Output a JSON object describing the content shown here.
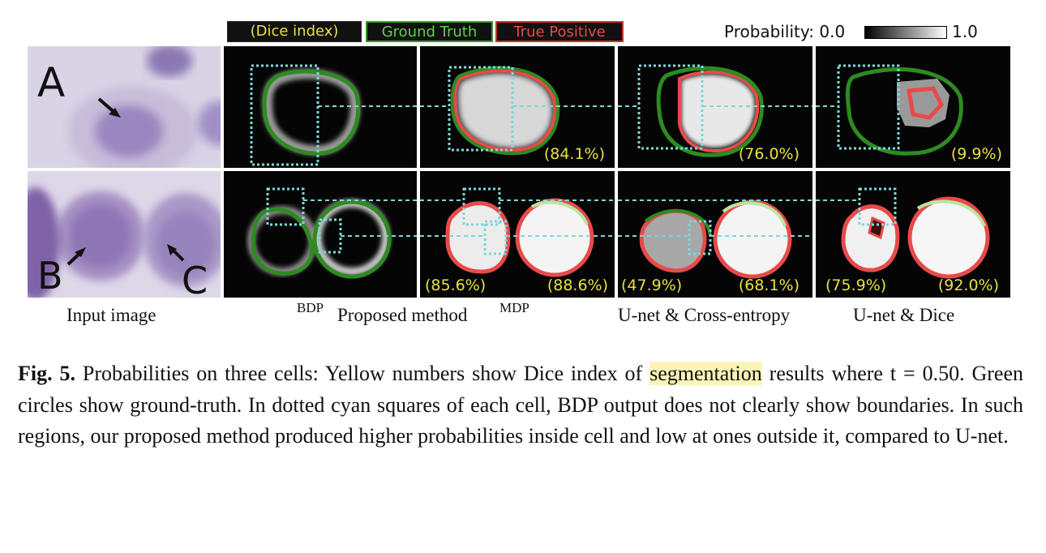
{
  "legend": {
    "dice": "(Dice index)",
    "ground_truth": "Ground Truth",
    "true_positive": "True Positive",
    "probability_label": "Probability: 0.0",
    "probability_max": "1.0"
  },
  "input_labels": {
    "a": "A",
    "b": "B",
    "c": "C"
  },
  "dice_values": {
    "row1": {
      "mdp": "(84.1%)",
      "unet_ce": "(76.0%)",
      "unet_dice": "(9.9%)"
    },
    "row2": {
      "mdp_left": "(85.6%)",
      "mdp_right": "(88.6%)",
      "unet_ce_left": "(47.9%)",
      "unet_ce_right": "(68.1%)",
      "unet_dice_left": "(75.9%)",
      "unet_dice_right": "(92.0%)"
    }
  },
  "column_labels": {
    "input": "Input image",
    "bdp": "BDP",
    "proposed": "Proposed method",
    "mdp": "MDP",
    "unet_ce": "U-net & Cross-entropy",
    "unet_dice": "U-net & Dice"
  },
  "caption": {
    "fig_no": "Fig. 5.",
    "text_before": " Probabilities on three cells: Yellow numbers show Dice index of ",
    "highlight": "segmentation",
    "text_after": " results where t = 0.50. Green circles show ground-truth. In dotted cyan squares of each cell, BDP output does not clearly show boundaries. In such regions, our proposed method produced higher probabilities inside cell and low at ones outside it, compared to U-net."
  },
  "colors": {
    "ground_truth": "#2e8b22",
    "true_positive": "#e84a4a",
    "dice_text": "#e8e040",
    "dotted_box": "#7fd6d6",
    "highlight": "#fbf4b8"
  }
}
